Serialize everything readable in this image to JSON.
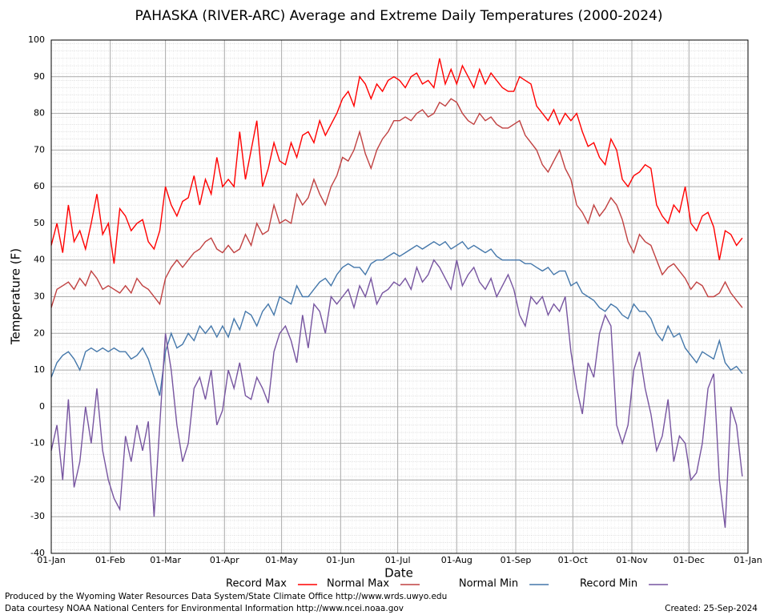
{
  "chart_data": {
    "type": "line",
    "title": "PAHASKA (RIVER-ARC) Average and Extreme Daily Temperatures (2000-2024)",
    "x_label": "Date",
    "y_label": "Temperature (F)",
    "x": [
      0,
      3,
      6,
      9,
      12,
      15,
      18,
      21,
      24,
      27,
      30,
      33,
      36,
      39,
      42,
      45,
      48,
      51,
      54,
      57,
      60,
      63,
      66,
      69,
      72,
      75,
      78,
      81,
      84,
      87,
      90,
      93,
      96,
      99,
      102,
      105,
      108,
      111,
      114,
      117,
      120,
      123,
      126,
      129,
      132,
      135,
      138,
      141,
      144,
      147,
      150,
      153,
      156,
      159,
      162,
      165,
      168,
      171,
      174,
      177,
      180,
      183,
      186,
      189,
      192,
      195,
      198,
      201,
      204,
      207,
      210,
      213,
      216,
      219,
      222,
      225,
      228,
      231,
      234,
      237,
      240,
      243,
      246,
      249,
      252,
      255,
      258,
      261,
      264,
      267,
      270,
      273,
      276,
      279,
      282,
      285,
      288,
      291,
      294,
      297,
      300,
      303,
      306,
      309,
      312,
      315,
      318,
      321,
      324,
      327,
      330,
      333,
      336,
      339,
      342,
      345,
      348,
      351,
      354,
      357,
      360,
      363
    ],
    "xlim": [
      0,
      366
    ],
    "xticks": [
      {
        "value": 0,
        "label": "01-Jan"
      },
      {
        "value": 31,
        "label": "01-Feb"
      },
      {
        "value": 60,
        "label": "01-Mar"
      },
      {
        "value": 91,
        "label": "01-Apr"
      },
      {
        "value": 121,
        "label": "01-May"
      },
      {
        "value": 152,
        "label": "01-Jun"
      },
      {
        "value": 182,
        "label": "01-Jul"
      },
      {
        "value": 213,
        "label": "01-Aug"
      },
      {
        "value": 244,
        "label": "01-Sep"
      },
      {
        "value": 274,
        "label": "01-Oct"
      },
      {
        "value": 305,
        "label": "01-Nov"
      },
      {
        "value": 335,
        "label": "01-Dec"
      },
      {
        "value": 366,
        "label": "01-Jan"
      }
    ],
    "ylim": [
      -40,
      100
    ],
    "yticks": [
      -40,
      -30,
      -20,
      -10,
      0,
      10,
      20,
      30,
      40,
      50,
      60,
      70,
      80,
      90,
      100
    ],
    "grid": true,
    "series": [
      {
        "name": "Record Max",
        "color": "#ff0000",
        "values": [
          44,
          50,
          42,
          55,
          45,
          48,
          43,
          50,
          58,
          47,
          50,
          39,
          54,
          52,
          48,
          50,
          51,
          45,
          43,
          48,
          60,
          55,
          52,
          56,
          57,
          63,
          55,
          62,
          58,
          68,
          60,
          62,
          60,
          75,
          62,
          70,
          78,
          60,
          65,
          72,
          67,
          66,
          72,
          68,
          74,
          75,
          72,
          78,
          74,
          77,
          80,
          84,
          86,
          82,
          90,
          88,
          84,
          88,
          86,
          89,
          90,
          89,
          87,
          90,
          91,
          88,
          89,
          87,
          95,
          88,
          92,
          88,
          93,
          90,
          87,
          92,
          88,
          91,
          89,
          87,
          86,
          86,
          90,
          89,
          88,
          82,
          80,
          78,
          81,
          77,
          80,
          78,
          80,
          75,
          71,
          72,
          68,
          66,
          73,
          70,
          62,
          60,
          63,
          64,
          66,
          65,
          55,
          52,
          50,
          55,
          53,
          60,
          50,
          48,
          52,
          53,
          49,
          40,
          48,
          47,
          44,
          46
        ]
      },
      {
        "name": "Normal Max",
        "color": "#c04040",
        "values": [
          27,
          32,
          33,
          34,
          32,
          35,
          33,
          37,
          35,
          32,
          33,
          32,
          31,
          33,
          31,
          35,
          33,
          32,
          30,
          28,
          35,
          38,
          40,
          38,
          40,
          42,
          43,
          45,
          46,
          43,
          42,
          44,
          42,
          43,
          47,
          44,
          50,
          47,
          48,
          55,
          50,
          51,
          50,
          58,
          55,
          57,
          62,
          58,
          55,
          60,
          63,
          68,
          67,
          70,
          75,
          69,
          65,
          70,
          73,
          75,
          78,
          78,
          79,
          78,
          80,
          81,
          79,
          80,
          83,
          82,
          84,
          83,
          80,
          78,
          77,
          80,
          78,
          79,
          77,
          76,
          76,
          77,
          78,
          74,
          72,
          70,
          66,
          64,
          67,
          70,
          65,
          62,
          55,
          53,
          50,
          55,
          52,
          54,
          57,
          55,
          51,
          45,
          42,
          47,
          45,
          44,
          40,
          36,
          38,
          39,
          37,
          35,
          32,
          34,
          33,
          30,
          30,
          31,
          34,
          31,
          29,
          27
        ]
      },
      {
        "name": "Normal Min",
        "color": "#4477aa",
        "values": [
          8,
          12,
          14,
          15,
          13,
          10,
          15,
          16,
          15,
          16,
          15,
          16,
          15,
          15,
          13,
          14,
          16,
          13,
          8,
          3,
          15,
          20,
          16,
          17,
          20,
          18,
          22,
          20,
          22,
          19,
          22,
          19,
          24,
          21,
          26,
          25,
          22,
          26,
          28,
          25,
          30,
          29,
          28,
          33,
          30,
          30,
          32,
          34,
          35,
          33,
          36,
          38,
          39,
          38,
          38,
          36,
          39,
          40,
          40,
          41,
          42,
          41,
          42,
          43,
          44,
          43,
          44,
          45,
          44,
          45,
          43,
          44,
          45,
          43,
          44,
          43,
          42,
          43,
          41,
          40,
          40,
          40,
          40,
          39,
          39,
          38,
          37,
          38,
          36,
          37,
          37,
          33,
          34,
          31,
          30,
          29,
          27,
          26,
          28,
          27,
          25,
          24,
          28,
          26,
          26,
          24,
          20,
          18,
          22,
          19,
          20,
          16,
          14,
          12,
          15,
          14,
          13,
          18,
          12,
          10,
          11,
          9
        ]
      },
      {
        "name": "Record Min",
        "color": "#7755a0",
        "values": [
          -12,
          -5,
          -20,
          2,
          -22,
          -15,
          0,
          -10,
          5,
          -12,
          -20,
          -25,
          -28,
          -8,
          -15,
          -5,
          -12,
          -4,
          -30,
          -5,
          20,
          10,
          -5,
          -15,
          -10,
          5,
          8,
          2,
          10,
          -5,
          -1,
          10,
          5,
          12,
          3,
          2,
          8,
          5,
          1,
          15,
          20,
          22,
          18,
          12,
          25,
          16,
          28,
          26,
          20,
          30,
          28,
          30,
          32,
          27,
          33,
          30,
          35,
          28,
          31,
          32,
          34,
          33,
          35,
          32,
          38,
          34,
          36,
          40,
          38,
          35,
          32,
          40,
          33,
          36,
          38,
          34,
          32,
          35,
          30,
          33,
          36,
          32,
          25,
          22,
          30,
          28,
          30,
          25,
          28,
          26,
          30,
          15,
          5,
          -2,
          12,
          8,
          20,
          25,
          22,
          -5,
          -10,
          -5,
          10,
          15,
          5,
          -2,
          -12,
          -8,
          2,
          -15,
          -8,
          -10,
          -20,
          -18,
          -10,
          5,
          9,
          -20,
          -33,
          0,
          -5,
          -19
        ]
      }
    ],
    "credits": [
      "Produced by the Wyoming Water Resources Data System/State Climate Office http://www.wrds.uwyo.edu",
      "Data courtesy NOAA National Centers for Environmental Information http://www.ncei.noaa.gov"
    ],
    "created": "Created:  25-Sep-2024"
  }
}
